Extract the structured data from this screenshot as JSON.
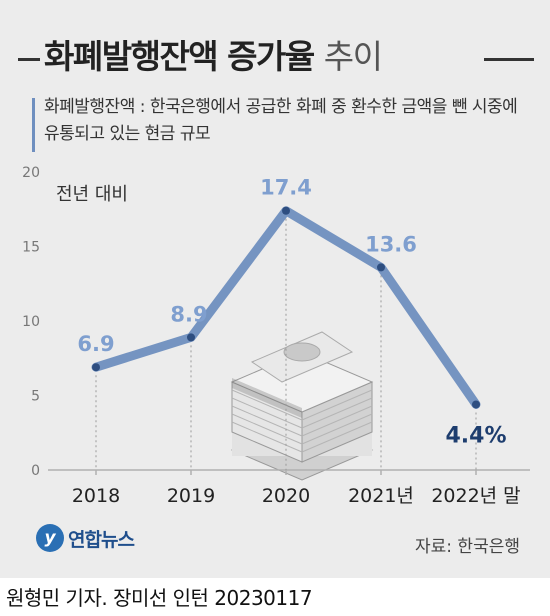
{
  "title_bold": "화폐발행잔액 증가율",
  "title_light": "추이",
  "description": "화폐발행잔액 : 한국은행에서 공급한 화폐 중 환수한 금액을 뺀 시중에 유통되고 있는 현금 규모",
  "source": "자료: 한국은행",
  "logo_text": "연합뉴스",
  "footer": "원형민 기자. 장미선 인턴  20230117",
  "colors": {
    "line": "#6f8fbf",
    "label": "#7f9fcf",
    "last_label": "#1d3d6e",
    "axis": "#b0b0b0"
  },
  "chart_data": {
    "type": "line",
    "ylabel": "전년 대비",
    "ylim": [
      0,
      20
    ],
    "yticks": [
      "0",
      "5",
      "10",
      "15",
      "20"
    ],
    "categories": [
      "2018",
      "2019",
      "2020",
      "2021년",
      "2022년 말"
    ],
    "values": [
      6.9,
      8.9,
      17.4,
      13.6,
      4.4
    ],
    "data_labels": [
      "6.9",
      "8.9",
      "17.4",
      "13.6",
      "4.4%"
    ],
    "grid": false,
    "illustration": "money-stack-icon"
  }
}
